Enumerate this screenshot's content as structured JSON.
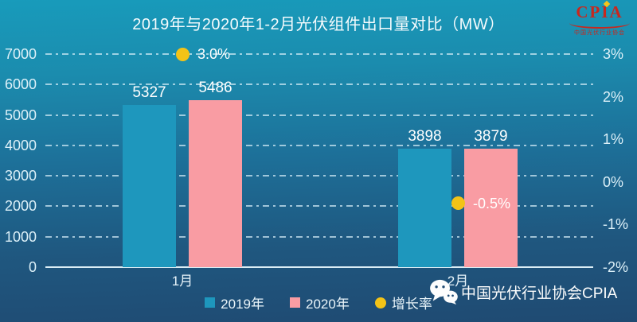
{
  "logo": {
    "text": "CPIA",
    "subtext": "中国光伏行业协会"
  },
  "footer": {
    "text": "中国光伏行业协会CPIA"
  },
  "legend": [
    {
      "key": "2019",
      "label": "2019年",
      "color": "#1E97BD",
      "shape": "square"
    },
    {
      "key": "2020",
      "label": "2020年",
      "color": "#F99CA3",
      "shape": "square"
    },
    {
      "key": "growth",
      "label": "增长率",
      "color": "#F3C317",
      "shape": "circle"
    }
  ],
  "chart_data": {
    "type": "bar",
    "title": "2019年与2020年1-2月光伏组件出口量对比（MW）",
    "categories": [
      "1月",
      "2月"
    ],
    "series": [
      {
        "key": "y2019",
        "name": "2019年",
        "type": "bar",
        "color": "#1E97BD",
        "values": [
          5327,
          3898
        ]
      },
      {
        "key": "y2020",
        "name": "2020年",
        "type": "bar",
        "color": "#F99CA3",
        "values": [
          5486,
          3879
        ]
      },
      {
        "key": "growth",
        "name": "增长率",
        "type": "point",
        "axis": "right",
        "color": "#F3C317",
        "values": [
          3.0,
          -0.5
        ],
        "labels": [
          "3.0%",
          "-0.5%"
        ]
      }
    ],
    "left_axis": {
      "min": 0,
      "max": 7000,
      "tick_values": [
        7000,
        6000,
        5000,
        4000,
        3000,
        2000,
        1000,
        0
      ],
      "ticks": [
        "7000",
        "6000",
        "5000",
        "4000",
        "3000",
        "2000",
        "1000",
        "0"
      ]
    },
    "right_axis": {
      "min": -2,
      "max": 3,
      "tick_values": [
        3,
        2,
        1,
        0,
        -1,
        -2
      ],
      "ticks": [
        "3%",
        "2%",
        "1%",
        "0%",
        "-1%",
        "-2%"
      ]
    },
    "grid": "horizontal-dash-dot",
    "legend_position": "bottom-center"
  }
}
